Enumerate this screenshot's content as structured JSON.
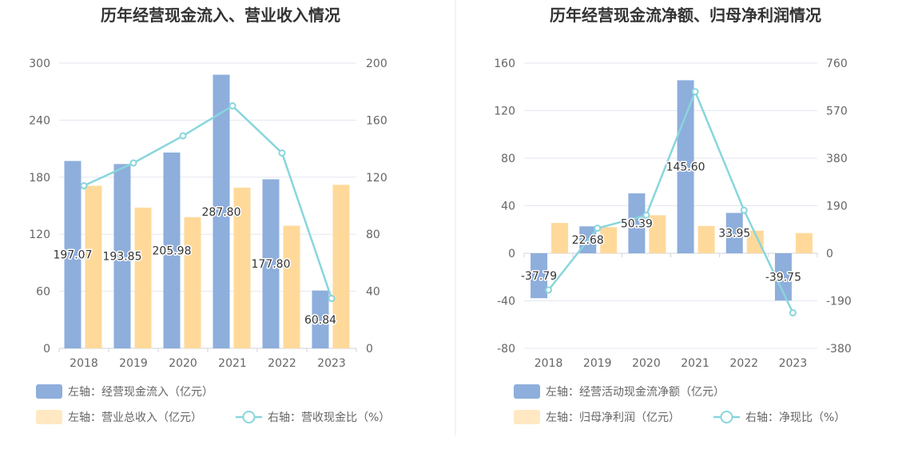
{
  "colors": {
    "bar_blue": "#8eaedc",
    "bar_yellow": "#ffd99a",
    "line_teal": "#88d6dc",
    "grid": "#e4e7f2",
    "axis": "#d0d3dc",
    "text_axis": "#666666",
    "title": "#333333",
    "divider": "#e8e8e8"
  },
  "chart_data": [
    {
      "type": "bar",
      "title": "历年经营现金流入、营业收入情况",
      "categories": [
        "2018",
        "2019",
        "2020",
        "2021",
        "2022",
        "2023"
      ],
      "y_left": {
        "range": [
          0,
          300
        ],
        "ticks": [
          "0",
          "60",
          "120",
          "180",
          "240",
          "300"
        ]
      },
      "y_right": {
        "range": [
          0,
          200
        ],
        "ticks": [
          "0",
          "40",
          "80",
          "120",
          "160",
          "200"
        ]
      },
      "series": [
        {
          "name": "左轴：经营现金流入（亿元）",
          "kind": "bar",
          "axis": "left",
          "values": [
            197.07,
            193.85,
            205.98,
            287.8,
            177.8,
            60.84
          ],
          "labels": [
            "197.07",
            "193.85",
            "205.98",
            "287.80",
            "177.80",
            "60.84"
          ]
        },
        {
          "name": "左轴：营业总收入（亿元）",
          "kind": "bar",
          "axis": "left",
          "values": [
            171,
            148,
            138,
            169,
            129,
            172
          ]
        },
        {
          "name": "右轴：营收现金比（%）",
          "kind": "line",
          "axis": "right",
          "values": [
            114,
            130,
            149,
            170,
            137,
            35
          ]
        }
      ],
      "legend_rows": [
        [
          {
            "series": 0,
            "text": "左轴：经营现金流入（亿元）"
          }
        ],
        [
          {
            "series": 1,
            "text": "左轴：营业总收入（亿元）"
          },
          {
            "series": 2,
            "text": "右轴：营收现金比（%）"
          }
        ]
      ]
    },
    {
      "type": "bar",
      "title": "历年经营现金流净额、归母净利润情况",
      "categories": [
        "2018",
        "2019",
        "2020",
        "2021",
        "2022",
        "2023"
      ],
      "y_left": {
        "range": [
          -80,
          160
        ],
        "ticks": [
          "-80",
          "-40",
          "0",
          "40",
          "80",
          "120",
          "160"
        ]
      },
      "y_right": {
        "range": [
          -380,
          760
        ],
        "ticks": [
          "-380",
          "-190",
          "0",
          "190",
          "380",
          "570",
          "760"
        ]
      },
      "series": [
        {
          "name": "左轴：经营活动现金流净额（亿元）",
          "kind": "bar",
          "axis": "left",
          "values": [
            -37.79,
            22.68,
            50.39,
            145.6,
            33.95,
            -39.75
          ],
          "labels": [
            "-37.79",
            "22.68",
            "50.39",
            "145.60",
            "33.95",
            "-39.75"
          ]
        },
        {
          "name": "左轴：归母净利润（亿元）",
          "kind": "bar",
          "axis": "left",
          "values": [
            25.5,
            22,
            32,
            23,
            19,
            17
          ]
        },
        {
          "name": "右轴：净现比（%）",
          "kind": "line",
          "axis": "right",
          "values": [
            -147,
            100,
            152,
            646,
            172,
            -238
          ]
        }
      ],
      "legend_rows": [
        [
          {
            "series": 0,
            "text": "左轴：经营活动现金流净额（亿元）"
          }
        ],
        [
          {
            "series": 1,
            "text": "左轴：归母净利润（亿元）"
          },
          {
            "series": 2,
            "text": "右轴：净现比（%）"
          }
        ]
      ]
    }
  ]
}
